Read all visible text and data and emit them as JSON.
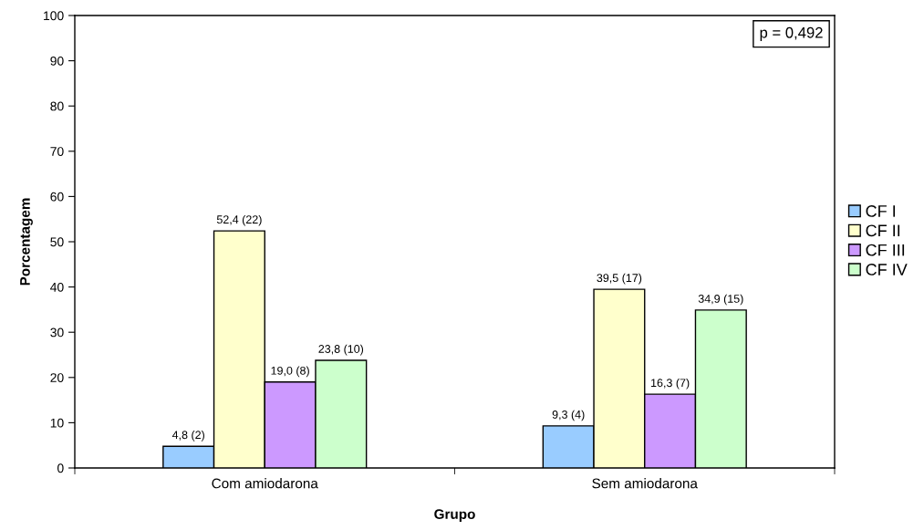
{
  "chart_data": {
    "type": "bar",
    "xlabel": "Grupo",
    "ylabel": "Porcentagem",
    "categories": [
      "Com amiodarona",
      "Sem amiodarona"
    ],
    "series": [
      {
        "name": "CF I",
        "color": "#99ccff",
        "values": [
          4.8,
          9.3
        ],
        "value_labels": [
          "4,8 (2)",
          "9,3 (4)"
        ]
      },
      {
        "name": "CF II",
        "color": "#ffffcc",
        "values": [
          52.4,
          39.5
        ],
        "value_labels": [
          "52,4 (22)",
          "39,5 (17)"
        ]
      },
      {
        "name": "CF III",
        "color": "#cc99ff",
        "values": [
          19.0,
          16.3
        ],
        "value_labels": [
          "19,0 (8)",
          "16,3 (7)"
        ]
      },
      {
        "name": "CF IV",
        "color": "#ccffcc",
        "values": [
          23.8,
          34.9
        ],
        "value_labels": [
          "23,8 (10)",
          "34,9 (15)"
        ]
      }
    ],
    "ylim": [
      0,
      100
    ],
    "yticks": [
      0,
      10,
      20,
      30,
      40,
      50,
      60,
      70,
      80,
      90,
      100
    ],
    "grid": false,
    "legend": "right",
    "annotations": [
      "p = 0,492"
    ]
  }
}
